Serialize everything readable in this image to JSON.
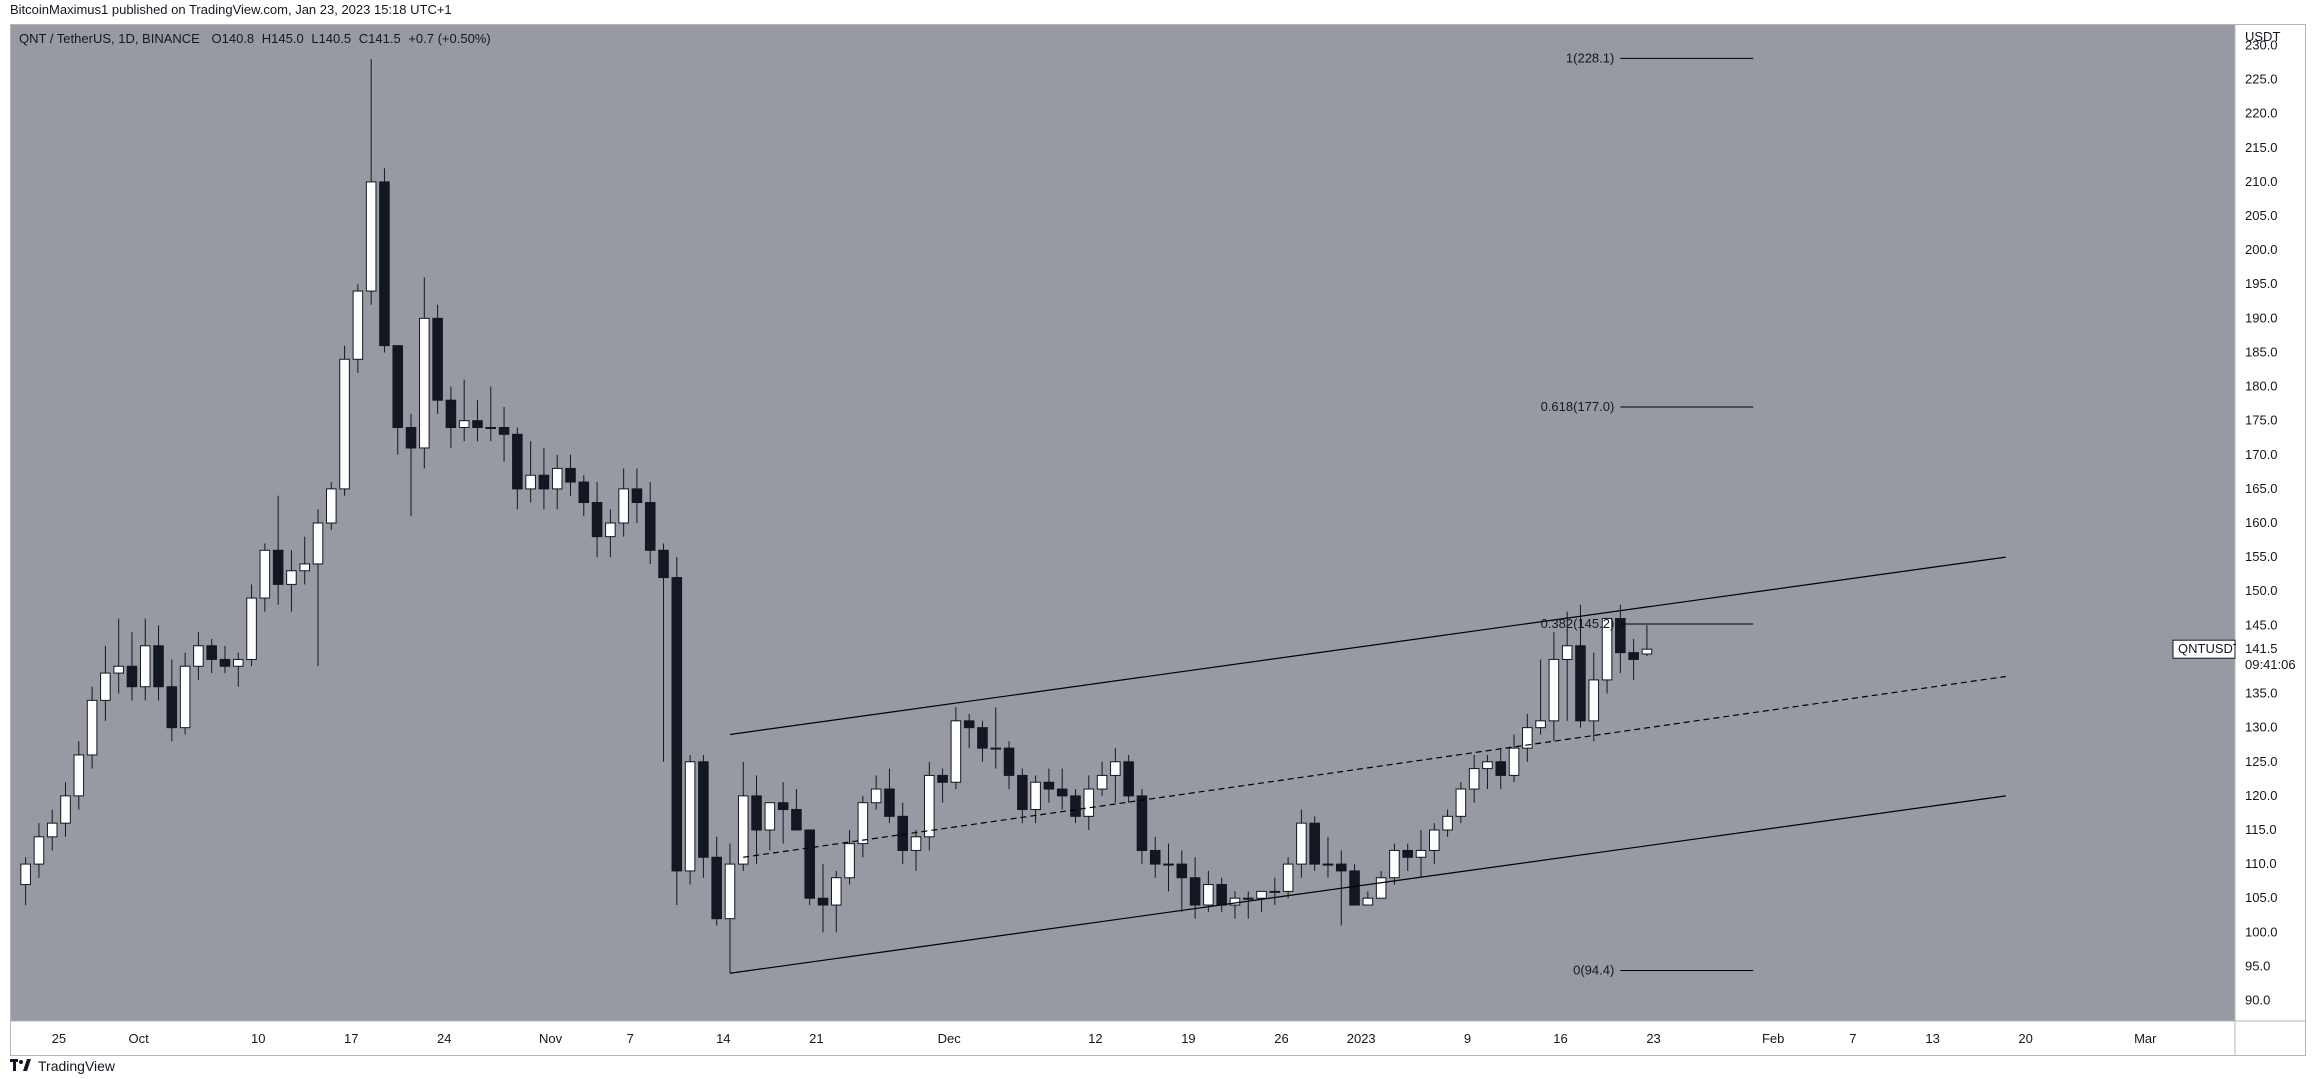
{
  "publish_line": "BitcoinMaximus1 published on TradingView.com, Jan 23, 2023 15:18 UTC+1",
  "footer_brand": "TradingView",
  "legend": {
    "symbol": "QNT / TetherUS, 1D, BINANCE",
    "open_label": "O",
    "open": "140.8",
    "high_label": "H",
    "high": "145.0",
    "low_label": "L",
    "low": "140.5",
    "close_label": "C",
    "close": "141.5",
    "change": "+0.7 (+0.50%)"
  },
  "price_tag": {
    "symbol": "QNTUSDT",
    "price": "141.5",
    "countdown": "09:41:06"
  },
  "colors": {
    "plot_bg": "#979aa3",
    "bull": "#ffffff",
    "bear": "#131722",
    "wick": "#131722",
    "line": "#000000"
  },
  "chart_data": {
    "type": "candlestick",
    "currency_label": "USDT",
    "ylim": [
      87,
      233
    ],
    "y_ticks": [
      "230.0",
      "225.0",
      "220.0",
      "215.0",
      "210.0",
      "205.0",
      "200.0",
      "195.0",
      "190.0",
      "185.0",
      "180.0",
      "175.0",
      "170.0",
      "165.0",
      "160.0",
      "155.0",
      "150.0",
      "145.0",
      "140.0",
      "135.0",
      "130.0",
      "125.0",
      "120.0",
      "115.0",
      "110.0",
      "105.0",
      "100.0",
      "95.0",
      "90.0"
    ],
    "x_start": "2022-09-22",
    "x_end": "2023-03-07",
    "x_ticks": [
      {
        "label": "25",
        "date": "2022-09-25"
      },
      {
        "label": "Oct",
        "date": "2022-10-01"
      },
      {
        "label": "10",
        "date": "2022-10-10"
      },
      {
        "label": "17",
        "date": "2022-10-17"
      },
      {
        "label": "24",
        "date": "2022-10-24"
      },
      {
        "label": "Nov",
        "date": "2022-11-01"
      },
      {
        "label": "7",
        "date": "2022-11-07"
      },
      {
        "label": "14",
        "date": "2022-11-14"
      },
      {
        "label": "21",
        "date": "2022-11-21"
      },
      {
        "label": "Dec",
        "date": "2022-12-01"
      },
      {
        "label": "12",
        "date": "2022-12-12"
      },
      {
        "label": "19",
        "date": "2022-12-19"
      },
      {
        "label": "26",
        "date": "2022-12-26"
      },
      {
        "label": "2023",
        "date": "2023-01-01"
      },
      {
        "label": "9",
        "date": "2023-01-09"
      },
      {
        "label": "16",
        "date": "2023-01-16"
      },
      {
        "label": "23",
        "date": "2023-01-23"
      },
      {
        "label": "Feb",
        "date": "2023-02-01"
      },
      {
        "label": "7",
        "date": "2023-02-07"
      },
      {
        "label": "13",
        "date": "2023-02-13"
      },
      {
        "label": "20",
        "date": "2023-02-20"
      },
      {
        "label": "Mar",
        "date": "2023-03-01"
      }
    ],
    "candles": [
      {
        "d": "2022-09-22",
        "o": 107,
        "h": 111,
        "l": 104,
        "c": 110
      },
      {
        "d": "2022-09-23",
        "o": 110,
        "h": 116,
        "l": 108,
        "c": 114
      },
      {
        "d": "2022-09-24",
        "o": 114,
        "h": 118,
        "l": 112,
        "c": 116
      },
      {
        "d": "2022-09-25",
        "o": 116,
        "h": 122,
        "l": 114,
        "c": 120
      },
      {
        "d": "2022-09-26",
        "o": 120,
        "h": 128,
        "l": 118,
        "c": 126
      },
      {
        "d": "2022-09-27",
        "o": 126,
        "h": 136,
        "l": 124,
        "c": 134
      },
      {
        "d": "2022-09-28",
        "o": 134,
        "h": 142,
        "l": 131,
        "c": 138
      },
      {
        "d": "2022-09-29",
        "o": 138,
        "h": 146,
        "l": 135,
        "c": 139
      },
      {
        "d": "2022-09-30",
        "o": 139,
        "h": 144,
        "l": 134,
        "c": 136
      },
      {
        "d": "2022-10-01",
        "o": 136,
        "h": 146,
        "l": 134,
        "c": 142
      },
      {
        "d": "2022-10-02",
        "o": 142,
        "h": 145,
        "l": 134,
        "c": 136
      },
      {
        "d": "2022-10-03",
        "o": 136,
        "h": 140,
        "l": 128,
        "c": 130
      },
      {
        "d": "2022-10-04",
        "o": 130,
        "h": 141,
        "l": 129,
        "c": 139
      },
      {
        "d": "2022-10-05",
        "o": 139,
        "h": 144,
        "l": 137,
        "c": 142
      },
      {
        "d": "2022-10-06",
        "o": 142,
        "h": 143,
        "l": 138,
        "c": 140
      },
      {
        "d": "2022-10-07",
        "o": 140,
        "h": 142,
        "l": 138,
        "c": 139
      },
      {
        "d": "2022-10-08",
        "o": 139,
        "h": 141,
        "l": 136,
        "c": 140
      },
      {
        "d": "2022-10-09",
        "o": 140,
        "h": 151,
        "l": 139,
        "c": 149
      },
      {
        "d": "2022-10-10",
        "o": 149,
        "h": 157,
        "l": 147,
        "c": 156
      },
      {
        "d": "2022-10-11",
        "o": 156,
        "h": 164,
        "l": 148,
        "c": 151
      },
      {
        "d": "2022-10-12",
        "o": 151,
        "h": 156,
        "l": 147,
        "c": 153
      },
      {
        "d": "2022-10-13",
        "o": 153,
        "h": 158,
        "l": 151,
        "c": 154
      },
      {
        "d": "2022-10-14",
        "o": 154,
        "h": 162,
        "l": 139,
        "c": 160
      },
      {
        "d": "2022-10-15",
        "o": 160,
        "h": 166,
        "l": 159,
        "c": 165
      },
      {
        "d": "2022-10-16",
        "o": 165,
        "h": 186,
        "l": 164,
        "c": 184
      },
      {
        "d": "2022-10-17",
        "o": 184,
        "h": 195,
        "l": 182,
        "c": 194
      },
      {
        "d": "2022-10-18",
        "o": 194,
        "h": 228,
        "l": 192,
        "c": 210
      },
      {
        "d": "2022-10-19",
        "o": 210,
        "h": 212,
        "l": 185,
        "c": 186
      },
      {
        "d": "2022-10-20",
        "o": 186,
        "h": 186,
        "l": 170,
        "c": 174
      },
      {
        "d": "2022-10-21",
        "o": 174,
        "h": 176,
        "l": 161,
        "c": 171
      },
      {
        "d": "2022-10-22",
        "o": 171,
        "h": 196,
        "l": 168,
        "c": 190
      },
      {
        "d": "2022-10-23",
        "o": 190,
        "h": 192,
        "l": 176,
        "c": 178
      },
      {
        "d": "2022-10-24",
        "o": 178,
        "h": 180,
        "l": 171,
        "c": 174
      },
      {
        "d": "2022-10-25",
        "o": 174,
        "h": 181,
        "l": 172,
        "c": 175
      },
      {
        "d": "2022-10-26",
        "o": 175,
        "h": 178,
        "l": 172,
        "c": 174
      },
      {
        "d": "2022-10-27",
        "o": 174,
        "h": 180,
        "l": 172,
        "c": 174
      },
      {
        "d": "2022-10-28",
        "o": 174,
        "h": 177,
        "l": 169,
        "c": 173
      },
      {
        "d": "2022-10-29",
        "o": 173,
        "h": 174,
        "l": 162,
        "c": 165
      },
      {
        "d": "2022-10-30",
        "o": 165,
        "h": 172,
        "l": 163,
        "c": 167
      },
      {
        "d": "2022-10-31",
        "o": 167,
        "h": 171,
        "l": 162,
        "c": 165
      },
      {
        "d": "2022-11-01",
        "o": 165,
        "h": 170,
        "l": 162,
        "c": 168
      },
      {
        "d": "2022-11-02",
        "o": 168,
        "h": 170,
        "l": 164,
        "c": 166
      },
      {
        "d": "2022-11-03",
        "o": 166,
        "h": 167,
        "l": 161,
        "c": 163
      },
      {
        "d": "2022-11-04",
        "o": 163,
        "h": 166,
        "l": 155,
        "c": 158
      },
      {
        "d": "2022-11-05",
        "o": 158,
        "h": 162,
        "l": 155,
        "c": 160
      },
      {
        "d": "2022-11-06",
        "o": 160,
        "h": 168,
        "l": 158,
        "c": 165
      },
      {
        "d": "2022-11-07",
        "o": 165,
        "h": 168,
        "l": 160,
        "c": 163
      },
      {
        "d": "2022-11-08",
        "o": 163,
        "h": 166,
        "l": 154,
        "c": 156
      },
      {
        "d": "2022-11-09",
        "o": 156,
        "h": 157,
        "l": 125,
        "c": 152
      },
      {
        "d": "2022-11-10",
        "o": 152,
        "h": 155,
        "l": 104,
        "c": 109
      },
      {
        "d": "2022-11-11",
        "o": 109,
        "h": 126,
        "l": 107,
        "c": 125
      },
      {
        "d": "2022-11-12",
        "o": 125,
        "h": 126,
        "l": 108,
        "c": 111
      },
      {
        "d": "2022-11-13",
        "o": 111,
        "h": 114,
        "l": 101,
        "c": 102
      },
      {
        "d": "2022-11-14",
        "o": 102,
        "h": 113,
        "l": 94,
        "c": 110
      },
      {
        "d": "2022-11-15",
        "o": 110,
        "h": 125,
        "l": 109,
        "c": 120
      },
      {
        "d": "2022-11-16",
        "o": 120,
        "h": 123,
        "l": 110,
        "c": 115
      },
      {
        "d": "2022-11-17",
        "o": 115,
        "h": 119,
        "l": 112,
        "c": 119
      },
      {
        "d": "2022-11-18",
        "o": 119,
        "h": 122,
        "l": 113,
        "c": 118
      },
      {
        "d": "2022-11-19",
        "o": 118,
        "h": 121,
        "l": 115,
        "c": 115
      },
      {
        "d": "2022-11-20",
        "o": 115,
        "h": 115,
        "l": 104,
        "c": 105
      },
      {
        "d": "2022-11-21",
        "o": 105,
        "h": 110,
        "l": 100,
        "c": 104
      },
      {
        "d": "2022-11-22",
        "o": 104,
        "h": 109,
        "l": 100,
        "c": 108
      },
      {
        "d": "2022-11-23",
        "o": 108,
        "h": 115,
        "l": 107,
        "c": 113
      },
      {
        "d": "2022-11-24",
        "o": 113,
        "h": 120,
        "l": 111,
        "c": 119
      },
      {
        "d": "2022-11-25",
        "o": 119,
        "h": 123,
        "l": 118,
        "c": 121
      },
      {
        "d": "2022-11-26",
        "o": 121,
        "h": 124,
        "l": 116,
        "c": 117
      },
      {
        "d": "2022-11-27",
        "o": 117,
        "h": 119,
        "l": 110,
        "c": 112
      },
      {
        "d": "2022-11-28",
        "o": 112,
        "h": 115,
        "l": 109,
        "c": 114
      },
      {
        "d": "2022-11-29",
        "o": 114,
        "h": 125,
        "l": 112,
        "c": 123
      },
      {
        "d": "2022-11-30",
        "o": 123,
        "h": 124,
        "l": 119,
        "c": 122
      },
      {
        "d": "2022-12-01",
        "o": 122,
        "h": 133,
        "l": 121,
        "c": 131
      },
      {
        "d": "2022-12-02",
        "o": 131,
        "h": 132,
        "l": 127,
        "c": 130
      },
      {
        "d": "2022-12-03",
        "o": 130,
        "h": 131,
        "l": 125,
        "c": 127
      },
      {
        "d": "2022-12-04",
        "o": 127,
        "h": 133,
        "l": 124,
        "c": 127
      },
      {
        "d": "2022-12-05",
        "o": 127,
        "h": 128,
        "l": 121,
        "c": 123
      },
      {
        "d": "2022-12-06",
        "o": 123,
        "h": 124,
        "l": 116,
        "c": 118
      },
      {
        "d": "2022-12-07",
        "o": 118,
        "h": 123,
        "l": 116,
        "c": 122
      },
      {
        "d": "2022-12-08",
        "o": 122,
        "h": 124,
        "l": 119,
        "c": 121
      },
      {
        "d": "2022-12-09",
        "o": 121,
        "h": 124,
        "l": 118,
        "c": 120
      },
      {
        "d": "2022-12-10",
        "o": 120,
        "h": 121,
        "l": 116,
        "c": 117
      },
      {
        "d": "2022-12-11",
        "o": 117,
        "h": 123,
        "l": 115,
        "c": 121
      },
      {
        "d": "2022-12-12",
        "o": 121,
        "h": 125,
        "l": 120,
        "c": 123
      },
      {
        "d": "2022-12-13",
        "o": 123,
        "h": 127,
        "l": 119,
        "c": 125
      },
      {
        "d": "2022-12-14",
        "o": 125,
        "h": 126,
        "l": 119,
        "c": 120
      },
      {
        "d": "2022-12-15",
        "o": 120,
        "h": 121,
        "l": 110,
        "c": 112
      },
      {
        "d": "2022-12-16",
        "o": 112,
        "h": 114,
        "l": 108,
        "c": 110
      },
      {
        "d": "2022-12-17",
        "o": 110,
        "h": 113,
        "l": 106,
        "c": 110
      },
      {
        "d": "2022-12-18",
        "o": 110,
        "h": 112,
        "l": 103,
        "c": 108
      },
      {
        "d": "2022-12-19",
        "o": 108,
        "h": 111,
        "l": 102,
        "c": 104
      },
      {
        "d": "2022-12-20",
        "o": 104,
        "h": 109,
        "l": 103,
        "c": 107
      },
      {
        "d": "2022-12-21",
        "o": 107,
        "h": 108,
        "l": 103,
        "c": 104
      },
      {
        "d": "2022-12-22",
        "o": 104,
        "h": 106,
        "l": 102,
        "c": 105
      },
      {
        "d": "2022-12-23",
        "o": 105,
        "h": 106,
        "l": 102,
        "c": 105
      },
      {
        "d": "2022-12-24",
        "o": 105,
        "h": 106,
        "l": 103,
        "c": 106
      },
      {
        "d": "2022-12-25",
        "o": 106,
        "h": 108,
        "l": 104,
        "c": 106
      },
      {
        "d": "2022-12-26",
        "o": 106,
        "h": 111,
        "l": 105,
        "c": 110
      },
      {
        "d": "2022-12-27",
        "o": 110,
        "h": 118,
        "l": 108,
        "c": 116
      },
      {
        "d": "2022-12-28",
        "o": 116,
        "h": 117,
        "l": 109,
        "c": 110
      },
      {
        "d": "2022-12-29",
        "o": 110,
        "h": 114,
        "l": 108,
        "c": 110
      },
      {
        "d": "2022-12-30",
        "o": 110,
        "h": 112,
        "l": 101,
        "c": 109
      },
      {
        "d": "2022-12-31",
        "o": 109,
        "h": 110,
        "l": 104,
        "c": 104
      },
      {
        "d": "2023-01-01",
        "o": 104,
        "h": 106,
        "l": 104,
        "c": 105
      },
      {
        "d": "2023-01-02",
        "o": 105,
        "h": 109,
        "l": 105,
        "c": 108
      },
      {
        "d": "2023-01-03",
        "o": 108,
        "h": 113,
        "l": 107,
        "c": 112
      },
      {
        "d": "2023-01-04",
        "o": 112,
        "h": 113,
        "l": 109,
        "c": 111
      },
      {
        "d": "2023-01-05",
        "o": 111,
        "h": 115,
        "l": 108,
        "c": 112
      },
      {
        "d": "2023-01-06",
        "o": 112,
        "h": 116,
        "l": 110,
        "c": 115
      },
      {
        "d": "2023-01-07",
        "o": 115,
        "h": 118,
        "l": 114,
        "c": 117
      },
      {
        "d": "2023-01-08",
        "o": 117,
        "h": 122,
        "l": 116,
        "c": 121
      },
      {
        "d": "2023-01-09",
        "o": 121,
        "h": 126,
        "l": 119,
        "c": 124
      },
      {
        "d": "2023-01-10",
        "o": 124,
        "h": 126,
        "l": 121,
        "c": 125
      },
      {
        "d": "2023-01-11",
        "o": 125,
        "h": 127,
        "l": 121,
        "c": 123
      },
      {
        "d": "2023-01-12",
        "o": 123,
        "h": 129,
        "l": 122,
        "c": 127
      },
      {
        "d": "2023-01-13",
        "o": 127,
        "h": 132,
        "l": 125,
        "c": 130
      },
      {
        "d": "2023-01-14",
        "o": 130,
        "h": 140,
        "l": 129,
        "c": 131
      },
      {
        "d": "2023-01-15",
        "o": 131,
        "h": 144,
        "l": 128,
        "c": 140
      },
      {
        "d": "2023-01-16",
        "o": 140,
        "h": 147,
        "l": 131,
        "c": 142
      },
      {
        "d": "2023-01-17",
        "o": 142,
        "h": 148,
        "l": 130,
        "c": 131
      },
      {
        "d": "2023-01-18",
        "o": 131,
        "h": 141,
        "l": 128,
        "c": 137
      },
      {
        "d": "2023-01-19",
        "o": 137,
        "h": 146,
        "l": 135,
        "c": 146
      },
      {
        "d": "2023-01-20",
        "o": 146,
        "h": 148,
        "l": 138,
        "c": 141
      },
      {
        "d": "2023-01-21",
        "o": 141,
        "h": 143,
        "l": 137,
        "c": 140
      },
      {
        "d": "2023-01-22",
        "o": 140.8,
        "h": 145,
        "l": 140.5,
        "c": 141.5
      }
    ],
    "channel": {
      "upper": [
        {
          "d": "2022-11-14",
          "v": 129
        },
        {
          "d": "2023-02-18",
          "v": 155
        }
      ],
      "middle": [
        {
          "d": "2022-11-15",
          "v": 111
        },
        {
          "d": "2023-02-18",
          "v": 137.5
        }
      ],
      "lower": [
        {
          "d": "2022-11-14",
          "v": 94
        },
        {
          "d": "2023-02-18",
          "v": 120
        }
      ]
    },
    "fib_levels": [
      {
        "label": "1(228.1)",
        "value": 228.1,
        "start": "2023-01-20",
        "end": "2023-01-30"
      },
      {
        "label": "0.618(177.0)",
        "value": 177.0,
        "start": "2023-01-20",
        "end": "2023-01-30"
      },
      {
        "label": "0.382(145.2)",
        "value": 145.2,
        "start": "2023-01-20",
        "end": "2023-01-30"
      },
      {
        "label": "0(94.4)",
        "value": 94.4,
        "start": "2023-01-20",
        "end": "2023-01-30"
      }
    ]
  }
}
